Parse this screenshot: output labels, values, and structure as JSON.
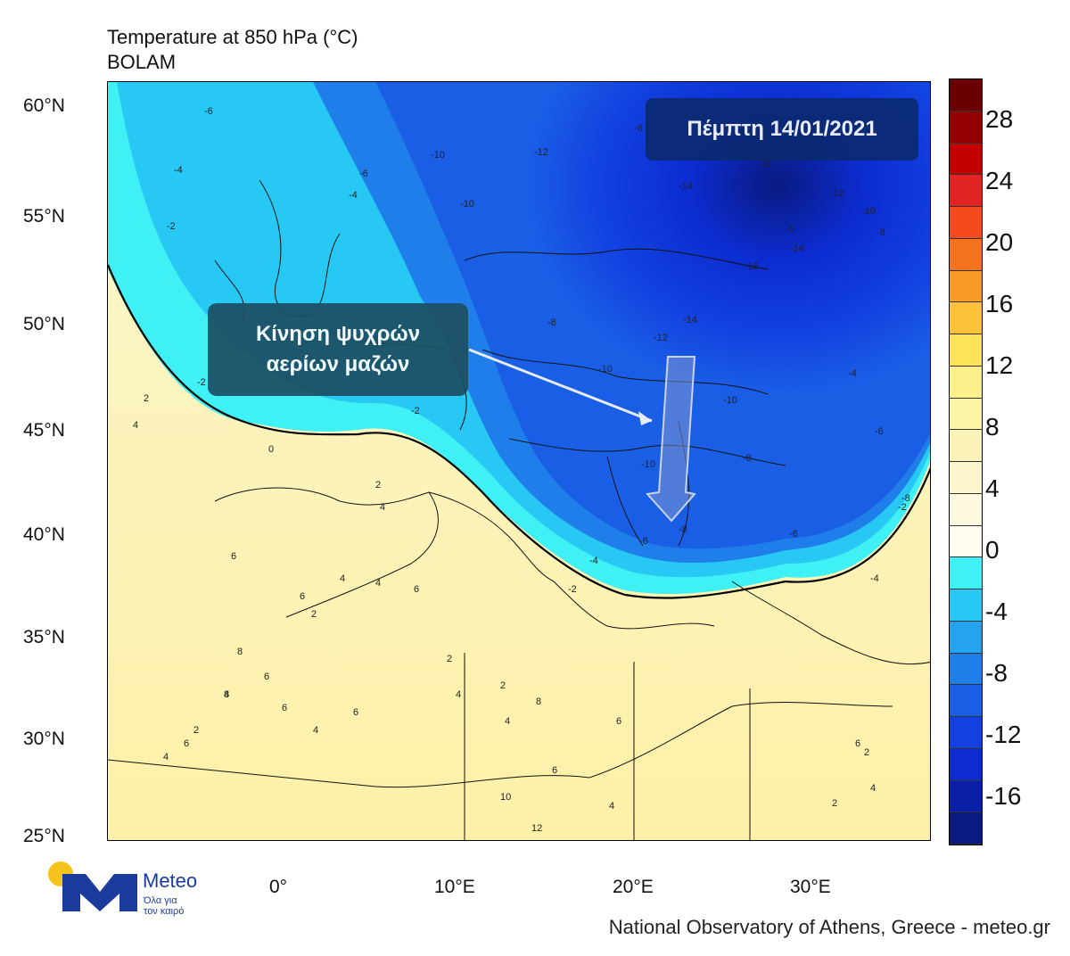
{
  "title": {
    "line1": "Temperature at 850 hPa (°C)",
    "line2": "BOLAM"
  },
  "map": {
    "lat_labels": [
      "60°N",
      "55°N",
      "50°N",
      "45°N",
      "40°N",
      "35°N",
      "30°N",
      "25°N"
    ],
    "lon_labels": [
      "0°",
      "10°E",
      "20°E",
      "30°E"
    ],
    "date_label": "Πέμπτη 14/01/2021",
    "annotation": {
      "line1": "Κίνηση ψυχρών",
      "line2": "αερίων μαζών"
    },
    "contour_labels": [
      "-6",
      "-4",
      "-6",
      "-4",
      "-2",
      "-2",
      "-2",
      "-10",
      "-10",
      "-8",
      "-12",
      "-14",
      "-16",
      "-16",
      "-14",
      "-12",
      "-10",
      "-8",
      "-14",
      "-12",
      "-10",
      "-8",
      "-6",
      "-4",
      "-6",
      "-8",
      "-10",
      "-10",
      "-8",
      "-6",
      "-4",
      "-2",
      "-6",
      "-8",
      "-4",
      "-2",
      "0",
      "2",
      "4",
      "2",
      "4",
      "6",
      "6",
      "4",
      "2",
      "4",
      "6",
      "8",
      "6",
      "4",
      "2",
      "4",
      "6",
      "8",
      "6",
      "4",
      "6",
      "2",
      "4",
      "2",
      "4",
      "6",
      "6",
      "8",
      "10",
      "12",
      "6",
      "2",
      "4",
      "2",
      "4"
    ]
  },
  "colorbar": {
    "labels": [
      "28",
      "24",
      "20",
      "16",
      "12",
      "8",
      "4",
      "0",
      "-4",
      "-8",
      "-12",
      "-16"
    ],
    "colors": [
      "#6b0000",
      "#930000",
      "#c40000",
      "#e32424",
      "#f54a1e",
      "#f5721e",
      "#f79a28",
      "#fbc23a",
      "#fde25a",
      "#fdf08a",
      "#fdf5a6",
      "#fbf3b8",
      "#fbf6cc",
      "#fdf9df",
      "#fffcf0",
      "#3ff0f5",
      "#28c8f4",
      "#24a4ee",
      "#1f7ee9",
      "#1a5ee6",
      "#1241e0",
      "#0c2cd0",
      "#0a1fa8",
      "#0a1a80"
    ]
  },
  "branding": {
    "logo_name": "Meteo",
    "logo_tag_line1": "Όλα για",
    "logo_tag_line2": "τον καιρό"
  },
  "footer": "National Observatory of Athens, Greece - meteo.gr"
}
